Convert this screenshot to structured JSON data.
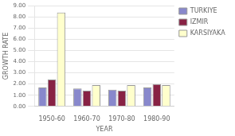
{
  "chart_data": {
    "type": "bar",
    "categories": [
      "1950-60",
      "1960-70",
      "1970-80",
      "1980-90"
    ],
    "series": [
      {
        "name": "TURKIYE",
        "color": "#8888cc",
        "values": [
          1.7,
          1.6,
          1.5,
          1.7
        ]
      },
      {
        "name": "IZMIR",
        "color": "#882244",
        "values": [
          2.4,
          1.4,
          1.4,
          2.0
        ]
      },
      {
        "name": "KARSIYAKA",
        "color": "#ffffcc",
        "values": [
          8.4,
          1.9,
          1.9,
          1.9
        ]
      }
    ],
    "xlabel": "YEAR",
    "ylabel": "GROWTH RATE",
    "ylim": [
      0,
      9.0
    ],
    "yticks": [
      {
        "value": 0,
        "label": "0.00"
      },
      {
        "value": 1,
        "label": "1.00"
      },
      {
        "value": 2,
        "label": "2.00"
      },
      {
        "value": 3,
        "label": "3.00"
      },
      {
        "value": 4,
        "label": "4.00"
      },
      {
        "value": 5,
        "label": "5.00"
      },
      {
        "value": 6,
        "label": "6.00"
      },
      {
        "value": 7,
        "label": "7.00"
      },
      {
        "value": 8,
        "label": "8.00"
      },
      {
        "value": 9,
        "label": "9.00"
      }
    ],
    "grid": true,
    "legend": "right"
  }
}
